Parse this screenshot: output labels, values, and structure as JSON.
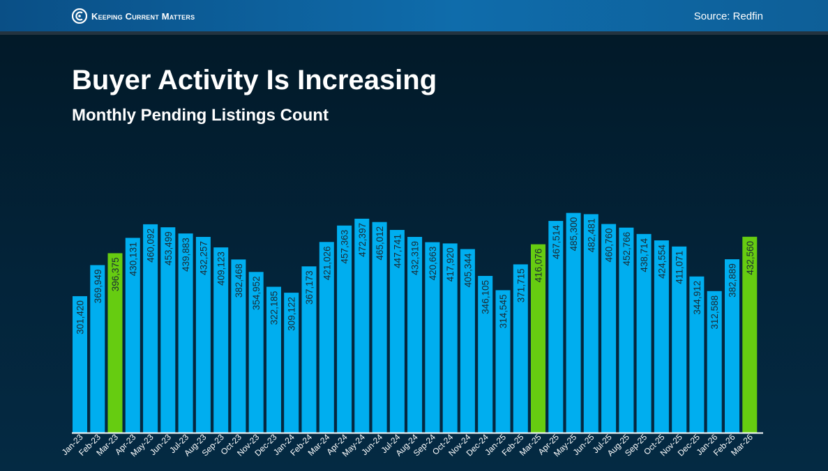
{
  "header": {
    "brand": "Keeping Current Matters",
    "source": "Source: Redfin"
  },
  "colors": {
    "bar": "#00aeef",
    "highlight": "#66cc11",
    "value_label": "#1a2a33",
    "axis": "#ffffff"
  },
  "chart_data": {
    "type": "bar",
    "title": "Buyer Activity Is Increasing",
    "subtitle": "Monthly Pending Listings Count",
    "xlabel": "",
    "ylabel": "",
    "ylim": [
      0,
      500000
    ],
    "grid": false,
    "categories": [
      "Jan-23",
      "Feb-23",
      "Mar-23",
      "Apr-23",
      "May-23",
      "Jun-23",
      "Jul-23",
      "Aug-23",
      "Sep-23",
      "Oct-23",
      "Nov-23",
      "Dec-23",
      "Jan-24",
      "Feb-24",
      "Mar-24",
      "Apr-24",
      "May-24",
      "Jun-24",
      "Jul-24",
      "Aug-24",
      "Sep-24",
      "Oct-24",
      "Nov-24",
      "Dec-24",
      "Jan-25",
      "Feb-25",
      "Mar-25",
      "Apr-25",
      "May-25",
      "Jun-25",
      "Jul-25",
      "Aug-25",
      "Sep-25",
      "Oct-25",
      "Nov-25",
      "Dec-25",
      "Jan-26",
      "Feb-26",
      "Mar-26"
    ],
    "values": [
      301420,
      369949,
      396375,
      430131,
      460092,
      453499,
      439883,
      432257,
      409123,
      382468,
      354952,
      322185,
      309122,
      367173,
      421026,
      457363,
      472397,
      465012,
      447741,
      432319,
      420663,
      417920,
      405344,
      346105,
      314545,
      371715,
      416076,
      467514,
      485300,
      482481,
      460760,
      452766,
      438714,
      424554,
      411071,
      344912,
      312588,
      382889,
      432560
    ],
    "value_labels": [
      "301,420",
      "369,949",
      "396,375",
      "430,131",
      "460,092",
      "453,499",
      "439,883",
      "432,257",
      "409,123",
      "382,468",
      "354,952",
      "322,185",
      "309,122",
      "367,173",
      "421,026",
      "457,363",
      "472,397",
      "465,012",
      "447,741",
      "432,319",
      "420,663",
      "417,920",
      "405,344",
      "346,105",
      "314,545",
      "371,715",
      "416,076",
      "467,514",
      "485,300",
      "482,481",
      "460,760",
      "452,766",
      "438,714",
      "424,554",
      "411,071",
      "344,912",
      "312,588",
      "382,889",
      "432,560"
    ],
    "highlighted": [
      "Mar-23",
      "Mar-25",
      "Mar-26"
    ]
  }
}
